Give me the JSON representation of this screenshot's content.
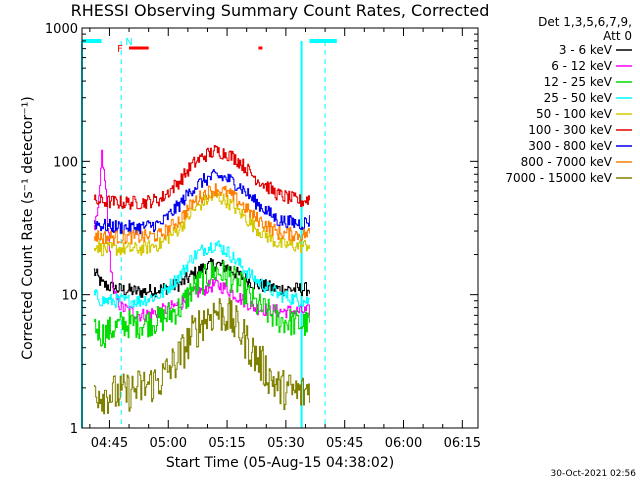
{
  "chart_data": {
    "type": "line",
    "title": "RHESSI Observing Summary Count Rates, Corrected",
    "xlabel": "Start Time (05-Aug-15 04:38:02)",
    "ylabel": "Corrected Count Rate (s⁻¹ detector⁻¹)",
    "y_scale": "log",
    "ylim": [
      1,
      1000
    ],
    "xlim_minutes_after_0438": [
      0,
      101
    ],
    "x_tick_labels": [
      "04:45",
      "05:00",
      "05:15",
      "05:30",
      "05:45",
      "06:00",
      "06:15"
    ],
    "y_tick_labels": [
      "1",
      "10",
      "100",
      "1000"
    ],
    "detector_info": [
      "Det 1,3,5,6,7,9,",
      "Att 0"
    ],
    "legend": [
      {
        "label": "3 - 6 keV",
        "color": "#000000"
      },
      {
        "label": "6 - 12 keV",
        "color": "#ff00ff"
      },
      {
        "label": "12 - 25 keV",
        "color": "#00dd00"
      },
      {
        "label": "25 - 50 keV",
        "color": "#00ffff"
      },
      {
        "label": "50 - 100 keV",
        "color": "#d4c800"
      },
      {
        "label": "100 - 300 keV",
        "color": "#e00000"
      },
      {
        "label": "300 - 800 keV",
        "color": "#0000ee"
      },
      {
        "label": "800 - 7000 keV",
        "color": "#ff8000"
      },
      {
        "label": "7000 - 15000 keV",
        "color": "#808000"
      }
    ],
    "flag_labels": {
      "flare": "F",
      "night": "N"
    },
    "series": [
      {
        "name": "3 - 6 keV",
        "color": "#000000",
        "points": [
          [
            3,
            15
          ],
          [
            5,
            12
          ],
          [
            9,
            11
          ],
          [
            15,
            10.5
          ],
          [
            20,
            11
          ],
          [
            25,
            12
          ],
          [
            28,
            14
          ],
          [
            31,
            16
          ],
          [
            34,
            17
          ],
          [
            37,
            16
          ],
          [
            40,
            14
          ],
          [
            44,
            12
          ],
          [
            50,
            11
          ],
          [
            56,
            11
          ],
          [
            58,
            11
          ]
        ]
      },
      {
        "name": "6 - 12 keV",
        "color": "#ff00ff",
        "points": [
          [
            3,
            30
          ],
          [
            4,
            40
          ],
          [
            5,
            110
          ],
          [
            6,
            60
          ],
          [
            7,
            20
          ],
          [
            8,
            10
          ],
          [
            10,
            8
          ],
          [
            15,
            7
          ],
          [
            20,
            7.5
          ],
          [
            25,
            8.5
          ],
          [
            28,
            10
          ],
          [
            31,
            11
          ],
          [
            34,
            12
          ],
          [
            37,
            11
          ],
          [
            40,
            9.5
          ],
          [
            44,
            8
          ],
          [
            50,
            7.5
          ],
          [
            56,
            7.5
          ],
          [
            58,
            7.5
          ]
        ]
      },
      {
        "name": "12 - 25 keV",
        "color": "#00dd00",
        "points": [
          [
            3,
            6
          ],
          [
            5,
            5
          ],
          [
            10,
            6
          ],
          [
            15,
            6
          ],
          [
            20,
            6.5
          ],
          [
            25,
            8
          ],
          [
            28,
            11
          ],
          [
            31,
            13
          ],
          [
            34,
            15
          ],
          [
            37,
            14
          ],
          [
            40,
            12
          ],
          [
            44,
            8.5
          ],
          [
            50,
            6.5
          ],
          [
            56,
            6
          ],
          [
            58,
            6
          ]
        ]
      },
      {
        "name": "25 - 50 keV",
        "color": "#00ffff",
        "points": [
          [
            3,
            10
          ],
          [
            5,
            9
          ],
          [
            10,
            9
          ],
          [
            15,
            9
          ],
          [
            20,
            10
          ],
          [
            25,
            14
          ],
          [
            28,
            19
          ],
          [
            31,
            22
          ],
          [
            34,
            24
          ],
          [
            37,
            21
          ],
          [
            40,
            17
          ],
          [
            44,
            13
          ],
          [
            50,
            10
          ],
          [
            56,
            9
          ],
          [
            58,
            9
          ]
        ]
      },
      {
        "name": "50 - 100 keV",
        "color": "#d4c800",
        "points": [
          [
            3,
            24
          ],
          [
            5,
            22
          ],
          [
            10,
            22
          ],
          [
            15,
            22
          ],
          [
            20,
            24
          ],
          [
            25,
            32
          ],
          [
            28,
            42
          ],
          [
            31,
            50
          ],
          [
            34,
            55
          ],
          [
            37,
            50
          ],
          [
            40,
            42
          ],
          [
            44,
            32
          ],
          [
            50,
            24
          ],
          [
            56,
            23
          ],
          [
            58,
            24
          ]
        ]
      },
      {
        "name": "100 - 300 keV",
        "color": "#e00000",
        "points": [
          [
            3,
            50
          ],
          [
            5,
            50
          ],
          [
            10,
            49
          ],
          [
            15,
            49
          ],
          [
            20,
            52
          ],
          [
            25,
            72
          ],
          [
            28,
            94
          ],
          [
            31,
            110
          ],
          [
            34,
            120
          ],
          [
            37,
            114
          ],
          [
            40,
            100
          ],
          [
            44,
            76
          ],
          [
            50,
            56
          ],
          [
            56,
            50
          ],
          [
            58,
            53
          ]
        ]
      },
      {
        "name": "300 - 800 keV",
        "color": "#0000ee",
        "points": [
          [
            3,
            35
          ],
          [
            5,
            33
          ],
          [
            10,
            32
          ],
          [
            15,
            32
          ],
          [
            20,
            34
          ],
          [
            25,
            48
          ],
          [
            28,
            62
          ],
          [
            31,
            72
          ],
          [
            34,
            78
          ],
          [
            37,
            74
          ],
          [
            40,
            66
          ],
          [
            44,
            50
          ],
          [
            50,
            36
          ],
          [
            56,
            34
          ],
          [
            58,
            36
          ]
        ]
      },
      {
        "name": "800 - 7000 keV",
        "color": "#ff8000",
        "points": [
          [
            3,
            28
          ],
          [
            5,
            27
          ],
          [
            10,
            27
          ],
          [
            15,
            27
          ],
          [
            20,
            28
          ],
          [
            25,
            37
          ],
          [
            28,
            48
          ],
          [
            31,
            57
          ],
          [
            34,
            62
          ],
          [
            37,
            58
          ],
          [
            40,
            50
          ],
          [
            44,
            38
          ],
          [
            50,
            29
          ],
          [
            56,
            28
          ],
          [
            58,
            29
          ]
        ]
      },
      {
        "name": "7000 - 15000 keV",
        "color": "#808000",
        "points": [
          [
            3,
            2
          ],
          [
            5,
            1.8
          ],
          [
            10,
            1.8
          ],
          [
            15,
            2
          ],
          [
            20,
            2.3
          ],
          [
            25,
            3.5
          ],
          [
            28,
            5
          ],
          [
            31,
            6.5
          ],
          [
            34,
            7.5
          ],
          [
            37,
            7
          ],
          [
            40,
            5.5
          ],
          [
            44,
            3.5
          ],
          [
            50,
            2
          ],
          [
            56,
            1.8
          ],
          [
            58,
            2
          ]
        ]
      }
    ],
    "flags": {
      "cyan_high_segments": [
        [
          0,
          5
        ],
        [
          58,
          65
        ]
      ],
      "cyan_dashed_lines": [
        10,
        62
      ],
      "cyan_solid_lines": [
        0,
        56
      ],
      "red_segments": [
        [
          12,
          17
        ],
        [
          45,
          46
        ]
      ]
    }
  },
  "footer_timestamp": "30-Oct-2021 02:56"
}
